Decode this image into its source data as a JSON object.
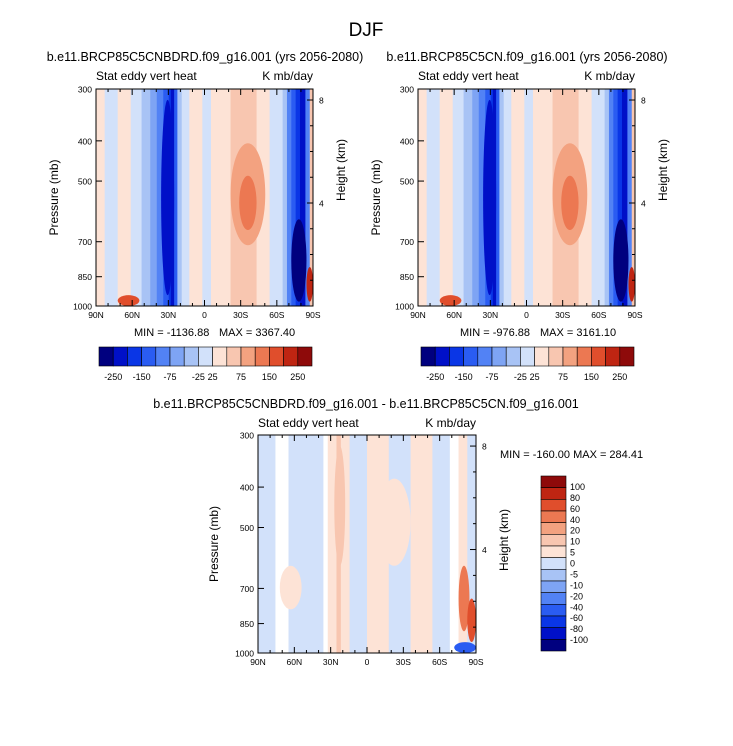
{
  "figure": {
    "main_title": "DJF",
    "y_tick_labels": [
      "300",
      "400",
      "500",
      "700",
      "850",
      "1000"
    ],
    "y_tick_values": [
      300,
      400,
      500,
      700,
      850,
      1000
    ],
    "height_tick_labels": [
      "8",
      "4"
    ],
    "height_tick_values": [
      8,
      4
    ],
    "x_tick_labels": [
      "90N",
      "60N",
      "30N",
      "0",
      "30S",
      "60S",
      "90S"
    ],
    "x_tick_values": [
      90,
      60,
      30,
      0,
      -30,
      -60,
      -90
    ],
    "ylabel_left": "Pressure (mb)",
    "ylabel_right": "Height (km)",
    "colors": {
      "full_scale": [
        "#00007f",
        "#0010c8",
        "#0a36e6",
        "#2a5cf2",
        "#5282f5",
        "#7ea4f4",
        "#a8c3f5",
        "#d2e1fa",
        "#fde3d6",
        "#f8c6b0",
        "#f3a280",
        "#ec7852",
        "#e04e2c",
        "#bf2512",
        "#8e0a0a"
      ],
      "diff_scale": [
        "#00007f",
        "#0010c8",
        "#0a36e6",
        "#2a5cf2",
        "#5282f5",
        "#7ea4f4",
        "#a8c3f5",
        "#d2e1fa",
        "#ffffff",
        "#fde3d6",
        "#f8c6b0",
        "#f3a280",
        "#ec7852",
        "#e04e2c",
        "#bf2512",
        "#8e0a0a"
      ]
    }
  },
  "panels": [
    {
      "id": "panel-1",
      "title": "b.e11.BRCP85C5CNBDRD.f09_g16.001 (yrs 2056-2080)",
      "left_string": "Stat eddy vert heat",
      "right_string": "K mb/day",
      "min_label": "MIN = -1136.88",
      "max_label": "MAX = 3367.40",
      "colorbar_labels": [
        "-250",
        "-150",
        "-75",
        "-25",
        "25",
        "75",
        "150",
        "250"
      ]
    },
    {
      "id": "panel-2",
      "title": "b.e11.BRCP85C5CN.f09_g16.001 (yrs 2056-2080)",
      "left_string": "Stat eddy vert heat",
      "right_string": "K mb/day",
      "min_label": "MIN = -976.88",
      "max_label": "MAX = 3161.10",
      "colorbar_labels": [
        "-250",
        "-150",
        "-75",
        "-25",
        "25",
        "75",
        "150",
        "250"
      ]
    },
    {
      "id": "panel-diff",
      "title": "b.e11.BRCP85C5CNBDRD.f09_g16.001 - b.e11.BRCP85C5CN.f09_g16.001",
      "left_string": "Stat eddy vert heat",
      "right_string": "K mb/day",
      "minmax_label": "MIN = -160.00  MAX = 284.41",
      "colorbar_labels": [
        "100",
        "80",
        "60",
        "40",
        "20",
        "10",
        "5",
        "0",
        "-5",
        "-10",
        "-20",
        "-40",
        "-60",
        "-80",
        "-100"
      ]
    }
  ],
  "chart_data": [
    {
      "type": "heatmap",
      "title": "b.e11.BRCP85C5CNBDRD.f09_g16.001 (yrs 2056-2080)",
      "variable": "Stat eddy vert heat",
      "units": "K mb/day",
      "xlabel": "",
      "ylabel": "Pressure (mb)",
      "ylabel_right": "Height (km)",
      "x_ticks": [
        "90N",
        "60N",
        "30N",
        "0",
        "30S",
        "60S",
        "90S"
      ],
      "xlim": [
        90,
        -90
      ],
      "ylim": [
        1000,
        300
      ],
      "y_scale": "log",
      "min": -1136.88,
      "max": 3367.4,
      "contour_levels": [
        -250,
        -200,
        -150,
        -100,
        -75,
        -50,
        -25,
        0,
        25,
        50,
        75,
        100,
        150,
        200,
        250
      ],
      "features": [
        {
          "lat": [
            55,
            40
          ],
          "p": [
            300,
            1000
          ],
          "sign": "negative",
          "level": -150
        },
        {
          "lat": [
            40,
            36
          ],
          "p": [
            300,
            1000
          ],
          "sign": "negative",
          "level": -250
        },
        {
          "lat": [
            -15,
            -40
          ],
          "p": [
            400,
            850
          ],
          "sign": "positive",
          "level": 25
        },
        {
          "lat": [
            -75,
            -88
          ],
          "p": [
            300,
            1000
          ],
          "sign": "negative",
          "level": -250
        },
        {
          "lat": [
            -88,
            -90
          ],
          "p": [
            800,
            1000
          ],
          "sign": "positive",
          "level": 150
        }
      ]
    },
    {
      "type": "heatmap",
      "title": "b.e11.BRCP85C5CN.f09_g16.001 (yrs 2056-2080)",
      "variable": "Stat eddy vert heat",
      "units": "K mb/day",
      "xlabel": "",
      "ylabel": "Pressure (mb)",
      "ylabel_right": "Height (km)",
      "x_ticks": [
        "90N",
        "60N",
        "30N",
        "0",
        "30S",
        "60S",
        "90S"
      ],
      "xlim": [
        90,
        -90
      ],
      "ylim": [
        1000,
        300
      ],
      "y_scale": "log",
      "min": -976.88,
      "max": 3161.1,
      "contour_levels": [
        -250,
        -200,
        -150,
        -100,
        -75,
        -50,
        -25,
        0,
        25,
        50,
        75,
        100,
        150,
        200,
        250
      ],
      "features": [
        {
          "lat": [
            55,
            40
          ],
          "p": [
            300,
            1000
          ],
          "sign": "negative",
          "level": -150
        },
        {
          "lat": [
            40,
            36
          ],
          "p": [
            300,
            1000
          ],
          "sign": "negative",
          "level": -250
        },
        {
          "lat": [
            -15,
            -40
          ],
          "p": [
            400,
            850
          ],
          "sign": "positive",
          "level": 25
        },
        {
          "lat": [
            -75,
            -88
          ],
          "p": [
            300,
            1000
          ],
          "sign": "negative",
          "level": -250
        },
        {
          "lat": [
            -88,
            -90
          ],
          "p": [
            800,
            1000
          ],
          "sign": "positive",
          "level": 150
        }
      ]
    },
    {
      "type": "heatmap",
      "title": "b.e11.BRCP85C5CNBDRD.f09_g16.001 - b.e11.BRCP85C5CN.f09_g16.001",
      "variable": "Stat eddy vert heat",
      "units": "K mb/day",
      "xlabel": "",
      "ylabel": "Pressure (mb)",
      "ylabel_right": "Height (km)",
      "x_ticks": [
        "90N",
        "60N",
        "30N",
        "0",
        "30S",
        "60S",
        "90S"
      ],
      "xlim": [
        90,
        -90
      ],
      "ylim": [
        1000,
        300
      ],
      "y_scale": "log",
      "min": -160.0,
      "max": 284.41,
      "contour_levels": [
        -100,
        -80,
        -60,
        -40,
        -20,
        -10,
        -5,
        0,
        5,
        10,
        20,
        40,
        60,
        80,
        100
      ],
      "features": [
        {
          "lat": [
            90,
            30
          ],
          "p": [
            300,
            1000
          ],
          "sign": "negative",
          "level": -5
        },
        {
          "lat": [
            30,
            20
          ],
          "p": [
            300,
            700
          ],
          "sign": "positive",
          "level": 5
        },
        {
          "lat": [
            -75,
            -88
          ],
          "p": [
            700,
            1000
          ],
          "sign": "positive",
          "level": 40
        },
        {
          "lat": [
            -80,
            -90
          ],
          "p": [
            950,
            1000
          ],
          "sign": "negative",
          "level": -60
        }
      ]
    }
  ]
}
